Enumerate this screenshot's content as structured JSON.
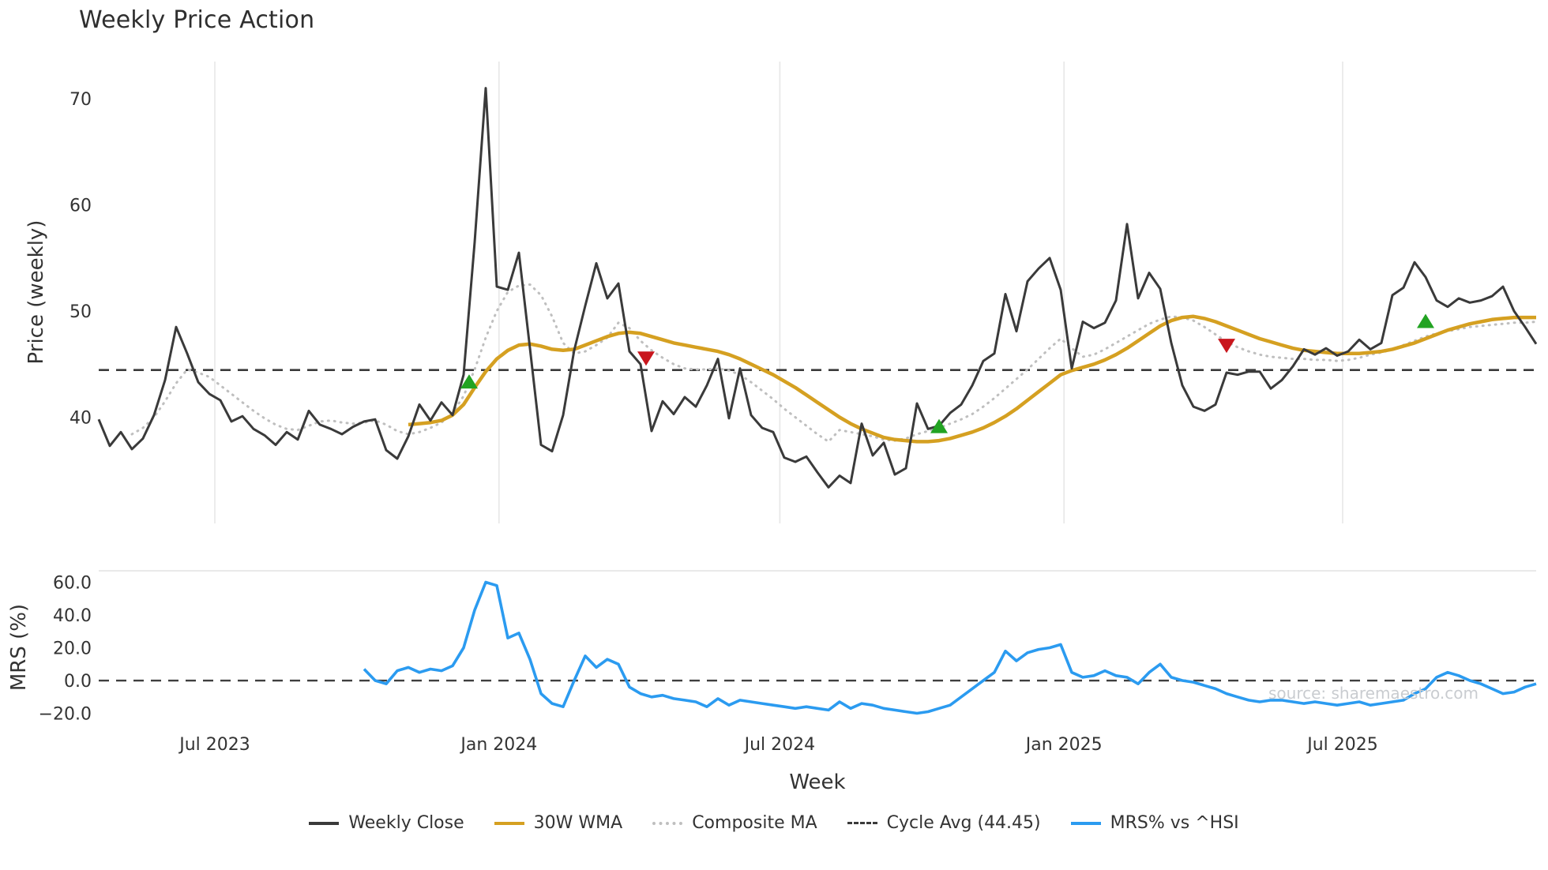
{
  "page": {
    "title": "Weekly Price Action",
    "x_axis_label": "Week",
    "price_axis_label": "Price (weekly)",
    "mrs_axis_label": "MRS (%)",
    "source": "source: sharemaestro.com"
  },
  "colors": {
    "weekly_close": "#3a3a3a",
    "wma_30w": "#d5a021",
    "composite_ma": "#bfbfbf",
    "cycle_avg": "#3a3a3a",
    "mrs_line": "#2b9bf0",
    "buy_marker": "#22a322",
    "sell_marker": "#c9161d",
    "grid": "#e7e7e7",
    "tick_text": "#333333"
  },
  "legend": {
    "items": [
      {
        "label": "Weekly Close",
        "swatch": "solid",
        "color": "#3a3a3a"
      },
      {
        "label": "30W WMA",
        "swatch": "solid",
        "color": "#d5a021"
      },
      {
        "label": "Composite MA",
        "swatch": "dotted",
        "color": "#bfbfbf"
      },
      {
        "label": "Cycle Avg (44.45)",
        "swatch": "dashed",
        "color": "#3a3a3a"
      },
      {
        "label": "MRS% vs ^HSI",
        "swatch": "solid",
        "color": "#2b9bf0"
      }
    ]
  },
  "chart_data": [
    {
      "type": "line",
      "title": "Weekly Price Action",
      "xlabel": "Week",
      "ylabel": "Price (weekly)",
      "x_unit": "week_index_from_late_Apr_2023",
      "xlim": [
        0,
        130
      ],
      "ylim": [
        30,
        73.5
      ],
      "grid": "vertical-only",
      "x_ticks": [
        {
          "week": 10.5,
          "label": "Jul 2023"
        },
        {
          "week": 36.2,
          "label": "Jan 2024"
        },
        {
          "week": 61.6,
          "label": "Jul 2024"
        },
        {
          "week": 87.3,
          "label": "Jan 2025"
        },
        {
          "week": 112.5,
          "label": "Jul 2025"
        }
      ],
      "y_ticks": [
        {
          "value": 40,
          "label": "40"
        },
        {
          "value": 50,
          "label": "50"
        },
        {
          "value": 60,
          "label": "60"
        },
        {
          "value": 70,
          "label": "70"
        }
      ],
      "series": [
        {
          "name": "Weekly Close",
          "color": "#3a3a3a",
          "width": 3,
          "start_week": 0,
          "values": [
            39.8,
            37.3,
            38.6,
            37.0,
            38.0,
            40.2,
            43.5,
            48.5,
            46.0,
            43.3,
            42.2,
            41.6,
            39.6,
            40.1,
            38.9,
            38.3,
            37.4,
            38.6,
            37.9,
            40.6,
            39.3,
            38.9,
            38.4,
            39.1,
            39.6,
            39.8,
            36.9,
            36.1,
            38.2,
            41.2,
            39.7,
            41.4,
            40.2,
            44.0,
            56.5,
            71.0,
            52.3,
            52.0,
            55.5,
            46.5,
            37.4,
            36.8,
            40.2,
            46.3,
            50.5,
            54.5,
            51.2,
            52.6,
            46.2,
            45.0,
            38.7,
            41.5,
            40.3,
            41.9,
            41.0,
            43.0,
            45.5,
            39.9,
            44.6,
            40.2,
            39.0,
            38.6,
            36.2,
            35.8,
            36.3,
            34.8,
            33.4,
            34.5,
            33.8,
            39.4,
            36.4,
            37.6,
            34.6,
            35.2,
            41.3,
            38.9,
            39.2,
            40.4,
            41.2,
            43.0,
            45.3,
            46.0,
            51.6,
            48.1,
            52.8,
            54.0,
            55.0,
            52.0,
            44.6,
            49.0,
            48.4,
            48.9,
            51.0,
            58.2,
            51.2,
            53.6,
            52.1,
            47.0,
            43.0,
            41.0,
            40.6,
            41.2,
            44.2,
            44.0,
            44.3,
            44.3,
            42.7,
            43.5,
            44.8,
            46.4,
            45.9,
            46.5,
            45.8,
            46.2,
            47.3,
            46.4,
            47.0,
            51.5,
            52.2,
            54.6,
            53.2,
            51.0,
            50.4,
            51.2,
            50.8,
            51.0,
            51.4,
            52.3,
            50.0,
            48.5,
            46.9
          ]
        },
        {
          "name": "30W WMA",
          "color": "#d5a021",
          "width": 4.5,
          "start_week": 28,
          "values": [
            39.3,
            39.4,
            39.5,
            39.7,
            40.2,
            41.2,
            42.8,
            44.3,
            45.5,
            46.3,
            46.8,
            46.9,
            46.7,
            46.4,
            46.3,
            46.4,
            46.8,
            47.2,
            47.6,
            47.9,
            48.0,
            47.9,
            47.6,
            47.3,
            47.0,
            46.8,
            46.6,
            46.4,
            46.2,
            45.9,
            45.5,
            45.0,
            44.5,
            44.0,
            43.4,
            42.8,
            42.1,
            41.4,
            40.7,
            40.0,
            39.4,
            38.9,
            38.5,
            38.1,
            37.9,
            37.8,
            37.7,
            37.7,
            37.8,
            38.0,
            38.3,
            38.6,
            39.0,
            39.5,
            40.1,
            40.8,
            41.6,
            42.4,
            43.2,
            44.0,
            44.4,
            44.7,
            45.0,
            45.4,
            45.9,
            46.5,
            47.2,
            47.9,
            48.6,
            49.1,
            49.4,
            49.5,
            49.3,
            49.0,
            48.6,
            48.2,
            47.8,
            47.4,
            47.1,
            46.8,
            46.5,
            46.3,
            46.2,
            46.1,
            46.0,
            46.0,
            46.0,
            46.1,
            46.2,
            46.4,
            46.7,
            47.0,
            47.4,
            47.8,
            48.2,
            48.5,
            48.8,
            49.0,
            49.2,
            49.3,
            49.4,
            49.4,
            49.4
          ]
        },
        {
          "name": "Composite MA",
          "color": "#bfbfbf",
          "width": 3,
          "dash": "1 7",
          "start_week": 3,
          "values": [
            38.4,
            39.0,
            40.0,
            41.5,
            43.2,
            44.5,
            44.2,
            43.8,
            43.0,
            42.2,
            41.4,
            40.6,
            39.9,
            39.3,
            38.9,
            38.8,
            39.2,
            39.6,
            39.7,
            39.5,
            39.4,
            39.5,
            39.7,
            39.3,
            38.7,
            38.4,
            38.6,
            39.0,
            39.5,
            40.4,
            42.0,
            44.5,
            47.5,
            50.0,
            51.8,
            52.4,
            52.5,
            51.5,
            49.5,
            47.0,
            46.0,
            46.2,
            46.8,
            47.5,
            48.9,
            48.4,
            47.2,
            46.3,
            45.6,
            45.0,
            44.6,
            44.5,
            44.5,
            44.6,
            44.4,
            44.0,
            43.3,
            42.5,
            41.7,
            40.8,
            40.0,
            39.2,
            38.4,
            37.7,
            38.8,
            38.6,
            38.4,
            38.2,
            37.9,
            37.8,
            38.0,
            38.4,
            38.7,
            39.0,
            39.4,
            39.8,
            40.3,
            41.0,
            41.8,
            42.7,
            43.6,
            44.5,
            45.5,
            46.5,
            47.4,
            46.5,
            45.7,
            45.9,
            46.4,
            47.0,
            47.6,
            48.2,
            48.8,
            49.2,
            49.5,
            49.4,
            49.1,
            48.5,
            47.8,
            47.1,
            46.6,
            46.2,
            45.9,
            45.7,
            45.6,
            45.5,
            45.5,
            45.4,
            45.4,
            45.3,
            45.4,
            45.6,
            45.9,
            46.1,
            46.4,
            46.8,
            47.2,
            47.6,
            47.9,
            48.1,
            48.3,
            48.5,
            48.6,
            48.7,
            48.8,
            48.9,
            48.9,
            49.0
          ]
        },
        {
          "name": "Cycle Avg",
          "type": "hline",
          "value": 44.45,
          "color": "#3a3a3a",
          "dash": "13 9",
          "width": 2.6
        }
      ],
      "markers": {
        "buy": {
          "color": "#22a322",
          "shape": "triangle-up",
          "points": [
            {
              "week": 33.5,
              "value": 43.3
            },
            {
              "week": 76,
              "value": 39.1
            },
            {
              "week": 120,
              "value": 49.0
            }
          ]
        },
        "sell": {
          "color": "#c9161d",
          "shape": "triangle-down",
          "points": [
            {
              "week": 49.5,
              "value": 45.6
            },
            {
              "week": 102,
              "value": 46.8
            }
          ]
        }
      }
    },
    {
      "type": "line",
      "ylabel": "MRS (%)",
      "xlim": [
        0,
        130
      ],
      "ylim": [
        -26,
        67
      ],
      "zero_line": {
        "value": 0,
        "color": "#3f3f3f",
        "dash": "13 9",
        "width": 2.4
      },
      "y_ticks": [
        {
          "value": -20,
          "label": "−20.0"
        },
        {
          "value": 0,
          "label": "0.0"
        },
        {
          "value": 20,
          "label": "20.0"
        },
        {
          "value": 40,
          "label": "40.0"
        },
        {
          "value": 60,
          "label": "60.0"
        }
      ],
      "series": [
        {
          "name": "MRS% vs ^HSI",
          "color": "#2b9bf0",
          "width": 3.6,
          "start_week": 24,
          "values": [
            7,
            0,
            -2,
            6,
            8,
            5,
            7,
            6,
            9,
            20,
            43,
            60,
            58,
            26,
            29,
            13,
            -8,
            -14,
            -16,
            0,
            15,
            8,
            13,
            10,
            -4,
            -8,
            -10,
            -9,
            -11,
            -12,
            -13,
            -16,
            -11,
            -15,
            -12,
            -13,
            -14,
            -15,
            -16,
            -17,
            -16,
            -17,
            -18,
            -13,
            -17,
            -14,
            -15,
            -17,
            -18,
            -19,
            -20,
            -19,
            -17,
            -15,
            -10,
            -5,
            0,
            5,
            18,
            12,
            17,
            19,
            20,
            22,
            5,
            2,
            3,
            6,
            3,
            2,
            -2,
            5,
            10,
            2,
            0,
            -1,
            -3,
            -5,
            -8,
            -10,
            -12,
            -13,
            -12,
            -12,
            -13,
            -14,
            -13,
            -14,
            -15,
            -14,
            -13,
            -15,
            -14,
            -13,
            -12,
            -8,
            -5,
            2,
            5,
            3,
            0,
            -2,
            -5,
            -8,
            -7,
            -4,
            -2
          ]
        }
      ]
    }
  ]
}
